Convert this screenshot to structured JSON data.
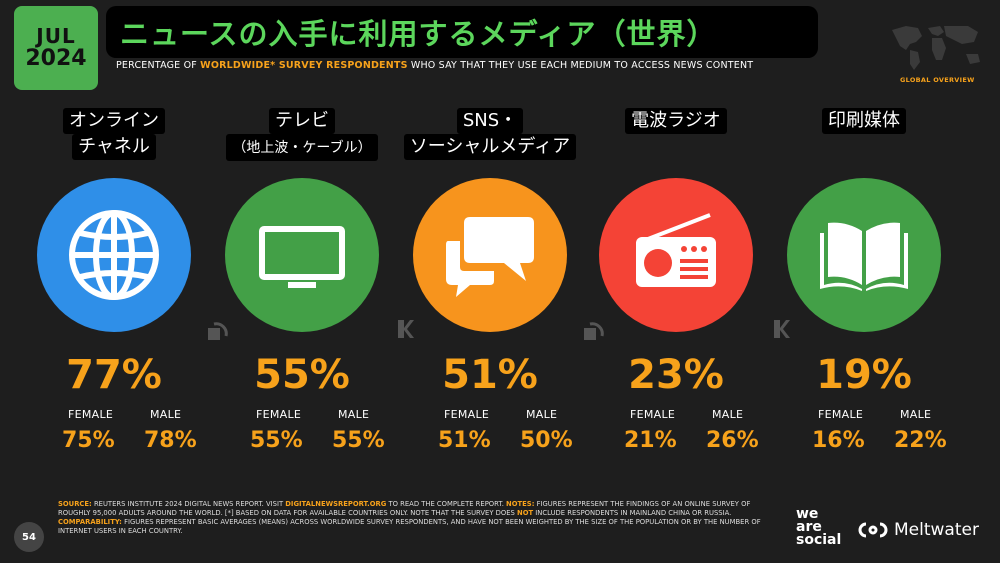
{
  "header": {
    "month": "JUL",
    "year": "2024",
    "title": "ニュースの入手に利用するメディア（世界）",
    "subtitle_pre": "PERCENTAGE OF ",
    "subtitle_hl": "WORLDWIDE* SURVEY RESPONDENTS",
    "subtitle_post": " WHO SAY THAT THEY USE EACH MEDIUM TO ACCESS NEWS CONTENT",
    "map_label": "GLOBAL OVERVIEW"
  },
  "gender_labels": {
    "female": "FEMALE",
    "male": "MALE"
  },
  "media": [
    {
      "line1": "オンライン",
      "line2": "チャネル",
      "color": "#2f8fe8",
      "icon": "globe-icon",
      "total": "77%",
      "female": "75%",
      "male": "78%"
    },
    {
      "line1": "テレビ",
      "line2": "（地上波・ケーブル）",
      "color": "#43a047",
      "icon": "tv-icon",
      "total": "55%",
      "female": "55%",
      "male": "55%"
    },
    {
      "line1": "SNS・",
      "line2": "ソーシャルメディア",
      "color": "#f7941d",
      "icon": "speech-bubbles-icon",
      "total": "51%",
      "female": "51%",
      "male": "50%"
    },
    {
      "line1": "電波ラジオ",
      "line2": "",
      "color": "#f44336",
      "icon": "radio-icon",
      "total": "23%",
      "female": "21%",
      "male": "26%"
    },
    {
      "line1": "印刷媒体",
      "line2": "",
      "color": "#43a047",
      "icon": "book-icon",
      "total": "19%",
      "female": "16%",
      "male": "22%"
    }
  ],
  "footer": {
    "source_label": "SOURCE:",
    "source_text": " REUTERS INSTITUTE 2024 DIGITAL NEWS REPORT. VISIT ",
    "source_link": "DIGITALNEWSREPORT.ORG",
    "source_text2": " TO READ THE COMPLETE REPORT. ",
    "notes_label": "NOTES:",
    "notes_text": " FIGURES REPRESENT THE FINDINGS OF AN ONLINE SURVEY OF ROUGHLY 95,000 ADULTS AROUND THE WORLD. [*] BASED ON DATA FOR AVAILABLE COUNTRIES ONLY. NOTE THAT THE SURVEY DOES ",
    "not_word": "NOT",
    "notes_text2": " INCLUDE RESPONDENTS IN MAINLAND CHINA OR RUSSIA. ",
    "comp_label": "COMPARABILITY:",
    "comp_text": " FIGURES REPRESENT BASIC AVERAGES (MEANS) ACROSS WORLDWIDE SURVEY RESPONDENTS, AND HAVE NOT BEEN WEIGHTED BY THE SIZE OF THE POPULATION OR BY THE NUMBER OF INTERNET USERS IN EACH COUNTRY.",
    "page": "54",
    "brand1_line1": "we",
    "brand1_line2": "are",
    "brand1_line3": "social",
    "brand2": "Meltwater"
  }
}
